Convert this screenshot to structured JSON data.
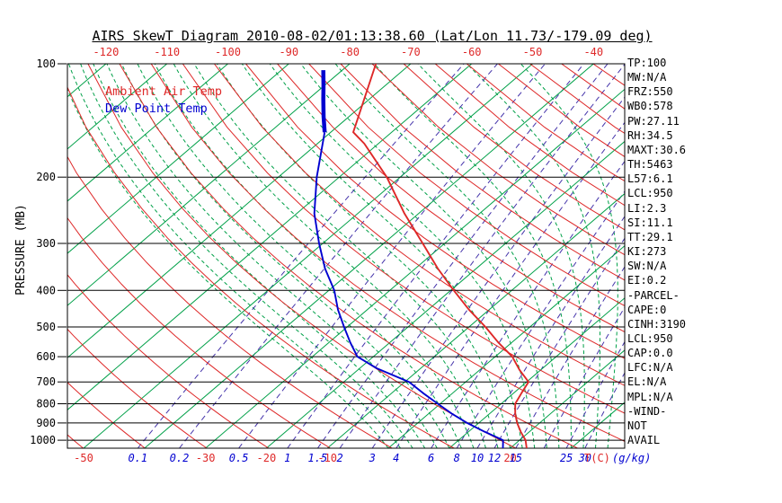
{
  "title": "AIRS SkewT Diagram 2010-08-02/01:13:38.60 (Lat/Lon 11.73/-179.09 deg)",
  "legend": {
    "ambient_label": "Ambient Air Temp",
    "dew_label": "Dew Point Temp"
  },
  "stats_panel": {
    "lines": [
      "TP:100",
      "MW:N/A",
      "FRZ:550",
      "WB0:578",
      "PW:27.11",
      "RH:34.5",
      "MAXT:30.6",
      "TH:5463",
      "L57:6.1",
      "LCL:950",
      "LI:2.3",
      "SI:11.1",
      "TT:29.1",
      "KI:273",
      "SW:N/A",
      "EI:0.2",
      "-PARCEL-",
      "CAPE:0",
      "CINH:3190",
      "LCL:950",
      "CAP:0.0",
      "LFC:N/A",
      "EL:N/A",
      "MPL:N/A",
      "-WIND-",
      "NOT",
      "AVAIL"
    ]
  },
  "chart_data": {
    "type": "skewt",
    "pressure_axis": {
      "label": "PRESSURE (MB)",
      "scale": "log",
      "range": [
        100,
        1050
      ],
      "ticks": [
        100,
        200,
        300,
        400,
        500,
        600,
        700,
        800,
        900,
        1000
      ]
    },
    "top_temp_ticks": [
      -120,
      -110,
      -100,
      -90,
      -80,
      -70,
      -60,
      -50,
      -40
    ],
    "bottom_temp_ticks": [
      -50,
      -30,
      -20,
      -10,
      20
    ],
    "temp_unit_label": "T(C)",
    "mixing_ratio_unit_label": "(g/kg)",
    "mixing_ratio_lines_gkg": [
      0.1,
      0.2,
      0.5,
      1,
      1.5,
      2,
      3,
      4,
      6,
      8,
      10,
      12,
      15,
      20,
      25,
      30
    ],
    "mixing_ratio_labels": [
      0.1,
      0.2,
      0.5,
      1,
      1.5,
      2,
      3,
      4,
      6,
      8,
      10,
      12,
      15,
      25,
      30
    ],
    "isotherms_c": {
      "start": -170,
      "end": 40,
      "step": 10
    },
    "dry_adiabats_k": {
      "start": 220,
      "end": 460,
      "step": 10
    },
    "moist_adiabats_start_c": {
      "start": 0,
      "end": 36,
      "step": 2
    },
    "colors": {
      "isotherm": "#00a048",
      "moist_adiabat": "#00a048",
      "dry_adiabat": "#de2828",
      "mixing_ratio": "#4433aa",
      "pressure_line": "#000000",
      "ambient": "#de2828",
      "dew": "#0000d0"
    },
    "series": [
      {
        "name": "Dew Point Temp",
        "color": "#0000d0",
        "thick": false,
        "points": [
          [
            1050,
            18.8
          ],
          [
            1000,
            17.3
          ],
          [
            950,
            12.7
          ],
          [
            900,
            8.1
          ],
          [
            850,
            3.8
          ],
          [
            800,
            -0.4
          ],
          [
            750,
            -4.8
          ],
          [
            700,
            -9.3
          ],
          [
            645,
            -17.1
          ],
          [
            600,
            -22.6
          ],
          [
            550,
            -26.5
          ],
          [
            500,
            -30.5
          ],
          [
            450,
            -34.8
          ],
          [
            400,
            -39.1
          ],
          [
            350,
            -44.8
          ],
          [
            300,
            -50.6
          ],
          [
            250,
            -57.1
          ],
          [
            200,
            -63.7
          ],
          [
            152,
            -71.0
          ]
        ]
      },
      {
        "name": "Dew Point Temp Upper",
        "color": "#0000d0",
        "thick": true,
        "points": [
          [
            152,
            -71.0
          ],
          [
            138,
            -74.2
          ],
          [
            124,
            -77.6
          ],
          [
            114,
            -80.2
          ],
          [
            104,
            -83.1
          ]
        ]
      },
      {
        "name": "Ambient Air Temp",
        "color": "#de2828",
        "thick": false,
        "points": [
          [
            1050,
            22.7
          ],
          [
            1000,
            21.0
          ],
          [
            950,
            18.6
          ],
          [
            900,
            16.3
          ],
          [
            850,
            14.2
          ],
          [
            800,
            12.3
          ],
          [
            750,
            11.3
          ],
          [
            700,
            10.3
          ],
          [
            650,
            6.5
          ],
          [
            600,
            2.8
          ],
          [
            550,
            -2.2
          ],
          [
            500,
            -7.3
          ],
          [
            450,
            -13.3
          ],
          [
            400,
            -19.5
          ],
          [
            350,
            -26.3
          ],
          [
            300,
            -33.6
          ],
          [
            250,
            -42.3
          ],
          [
            200,
            -52.2
          ],
          [
            163,
            -62.3
          ],
          [
            152,
            -66.3
          ],
          [
            100,
            -75.7
          ]
        ]
      }
    ]
  }
}
